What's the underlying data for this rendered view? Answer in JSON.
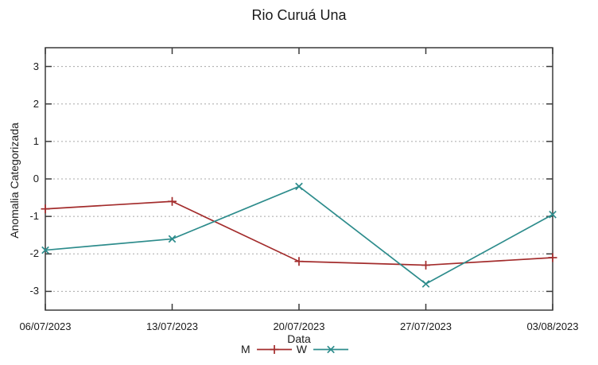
{
  "chart_data": {
    "type": "line",
    "title": "Rio Curuá Una",
    "xlabel": "Data",
    "ylabel": "Anomalia Categorizada",
    "categories": [
      "06/07/2023",
      "13/07/2023",
      "20/07/2023",
      "27/07/2023",
      "03/08/2023"
    ],
    "series": [
      {
        "name": "M",
        "color": "#a32c2c",
        "marker": "plus",
        "values": [
          -0.8,
          -0.6,
          -2.2,
          -2.3,
          -2.1
        ]
      },
      {
        "name": "W",
        "color": "#2d8c8c",
        "marker": "cross",
        "values": [
          -1.9,
          -1.6,
          -0.2,
          -2.8,
          -0.95
        ]
      }
    ],
    "ylim": [
      -3.5,
      3.5
    ],
    "yticks": [
      -3,
      -2,
      -1,
      0,
      1,
      2,
      3
    ],
    "grid": "horizontal-dashed",
    "legend_position": "bottom-center"
  },
  "colors": {
    "background": "#ffffff",
    "axis": "#3a3a3a",
    "grid": "#a8a8a8",
    "text": "#1a1a1a",
    "series_m": "#a32c2c",
    "series_w": "#2d8c8c"
  }
}
